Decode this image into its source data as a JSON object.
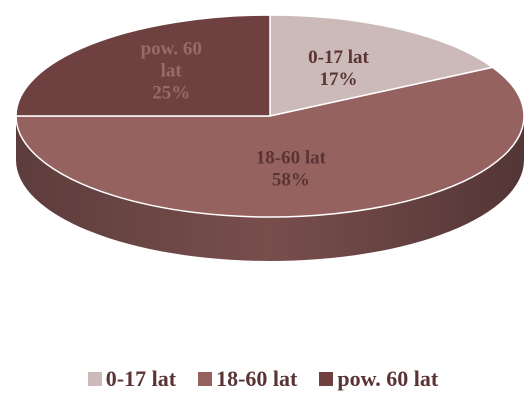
{
  "chart_data": {
    "type": "pie",
    "style": "3d",
    "title": "",
    "categories": [
      "0-17 lat",
      "18-60 lat",
      "pow. 60 lat"
    ],
    "values": [
      17,
      58,
      25
    ],
    "unit": "%",
    "slices": [
      {
        "name": "0-17 lat",
        "value": 17,
        "label_lines": [
          "0-17 lat",
          "17%"
        ],
        "color": "#cbbab8",
        "label_color": "#5a3434"
      },
      {
        "name": "18-60 lat",
        "value": 58,
        "label_lines": [
          "18-60 lat",
          "58%"
        ],
        "color": "#966260",
        "label_color": "#5a3434"
      },
      {
        "name": "pow. 60 lat",
        "value": 25,
        "label_lines": [
          "pow. 60",
          "lat",
          "25%"
        ],
        "color": "#6e4040",
        "label_color": "#9a6a68"
      }
    ],
    "legend": {
      "position": "bottom",
      "items": [
        {
          "label": "0-17 lat",
          "color": "#cbbab8"
        },
        {
          "label": "18-60 lat",
          "color": "#966260"
        },
        {
          "label": "pow. 60 lat",
          "color": "#6e4040"
        }
      ]
    }
  }
}
